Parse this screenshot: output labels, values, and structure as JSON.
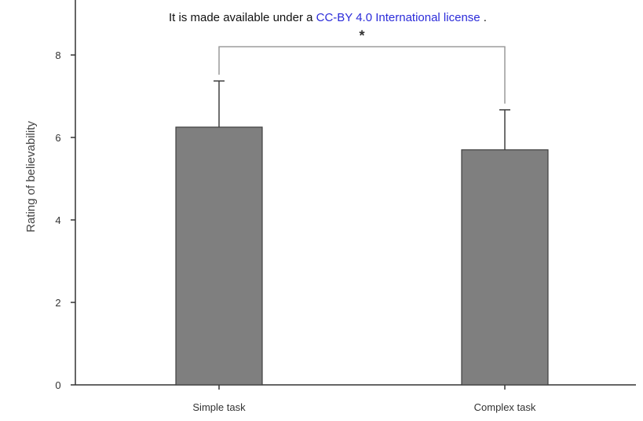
{
  "header": {
    "license_prefix": "It is made available under a ",
    "license_link": "CC-BY 4.0 International license",
    "license_suffix": " ."
  },
  "colors": {
    "bar_fill": "#7f7f7f",
    "bar_stroke": "#3f3f3f",
    "axis": "#333333",
    "bracket": "#9a9a9a",
    "link": "#2b2bd9"
  },
  "chart_data": {
    "type": "bar",
    "categories": [
      "Simple task",
      "Complex task"
    ],
    "values": [
      6.25,
      5.7
    ],
    "error_upper": [
      1.12,
      0.97
    ],
    "ylabel": "Rating of believability",
    "xlabel": "",
    "title": "",
    "ylim": [
      0,
      9
    ],
    "yticks": [
      0,
      2,
      4,
      6,
      8
    ],
    "grid": false,
    "annotations": [
      {
        "type": "significance-bracket",
        "text": "*",
        "between": [
          "Simple task",
          "Complex task"
        ],
        "level": 8.2
      }
    ]
  }
}
